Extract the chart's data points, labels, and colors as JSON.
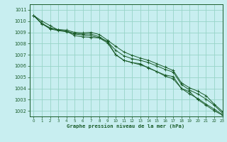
{
  "title": "Graphe pression niveau de la mer (hPa)",
  "bg_color": "#c8eef0",
  "grid_color": "#98d4c8",
  "line_color": "#1a5c2a",
  "text_color": "#1a5c2a",
  "xlim": [
    -0.5,
    23
  ],
  "ylim": [
    1001.5,
    1011.5
  ],
  "yticks": [
    1002,
    1003,
    1004,
    1005,
    1006,
    1007,
    1008,
    1009,
    1010,
    1011
  ],
  "xticks": [
    0,
    1,
    2,
    3,
    4,
    5,
    6,
    7,
    8,
    9,
    10,
    11,
    12,
    13,
    14,
    15,
    16,
    17,
    18,
    19,
    20,
    21,
    22,
    23
  ],
  "series": [
    [
      1010.5,
      1010.0,
      1009.6,
      1009.2,
      1009.1,
      1008.7,
      1008.6,
      1008.55,
      1008.5,
      1008.2,
      1007.0,
      1006.5,
      1006.3,
      1006.2,
      1005.8,
      1005.5,
      1005.2,
      1005.05,
      1004.0,
      1003.7,
      1003.0,
      1002.5,
      1002.0,
      1001.62
    ],
    [
      1010.5,
      1009.8,
      1009.3,
      1009.15,
      1009.05,
      1008.85,
      1008.75,
      1008.7,
      1008.5,
      1008.05,
      1007.0,
      1006.5,
      1006.3,
      1006.1,
      1005.85,
      1005.5,
      1005.1,
      1004.85,
      1004.0,
      1003.5,
      1003.1,
      1002.6,
      1002.15,
      1001.65
    ],
    [
      1010.5,
      1009.8,
      1009.4,
      1009.2,
      1009.1,
      1008.9,
      1008.85,
      1008.85,
      1008.6,
      1008.15,
      1007.4,
      1006.9,
      1006.65,
      1006.5,
      1006.3,
      1006.0,
      1005.7,
      1005.45,
      1004.35,
      1003.85,
      1003.5,
      1003.05,
      1002.5,
      1001.8
    ],
    [
      1010.5,
      1009.75,
      1009.35,
      1009.25,
      1009.2,
      1009.0,
      1008.95,
      1009.0,
      1008.8,
      1008.3,
      1007.75,
      1007.25,
      1006.95,
      1006.7,
      1006.5,
      1006.2,
      1005.9,
      1005.6,
      1004.5,
      1004.05,
      1003.75,
      1003.35,
      1002.6,
      1001.95
    ]
  ]
}
